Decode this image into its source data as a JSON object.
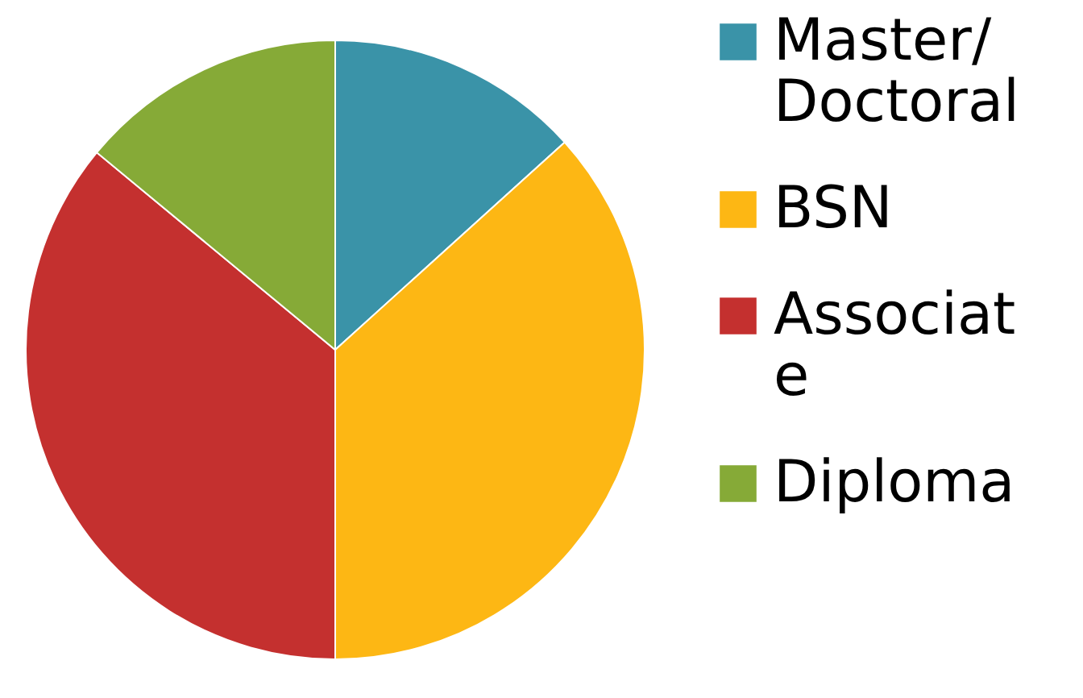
{
  "chart_data": {
    "type": "pie",
    "categories": [
      "Master/Doctoral",
      "BSN",
      "Associate",
      "Diploma"
    ],
    "values": [
      13.3,
      36.7,
      36,
      14
    ],
    "colors": [
      "#3a93a8",
      "#fdb714",
      "#c4302f",
      "#86aa37"
    ],
    "legend": "right"
  }
}
